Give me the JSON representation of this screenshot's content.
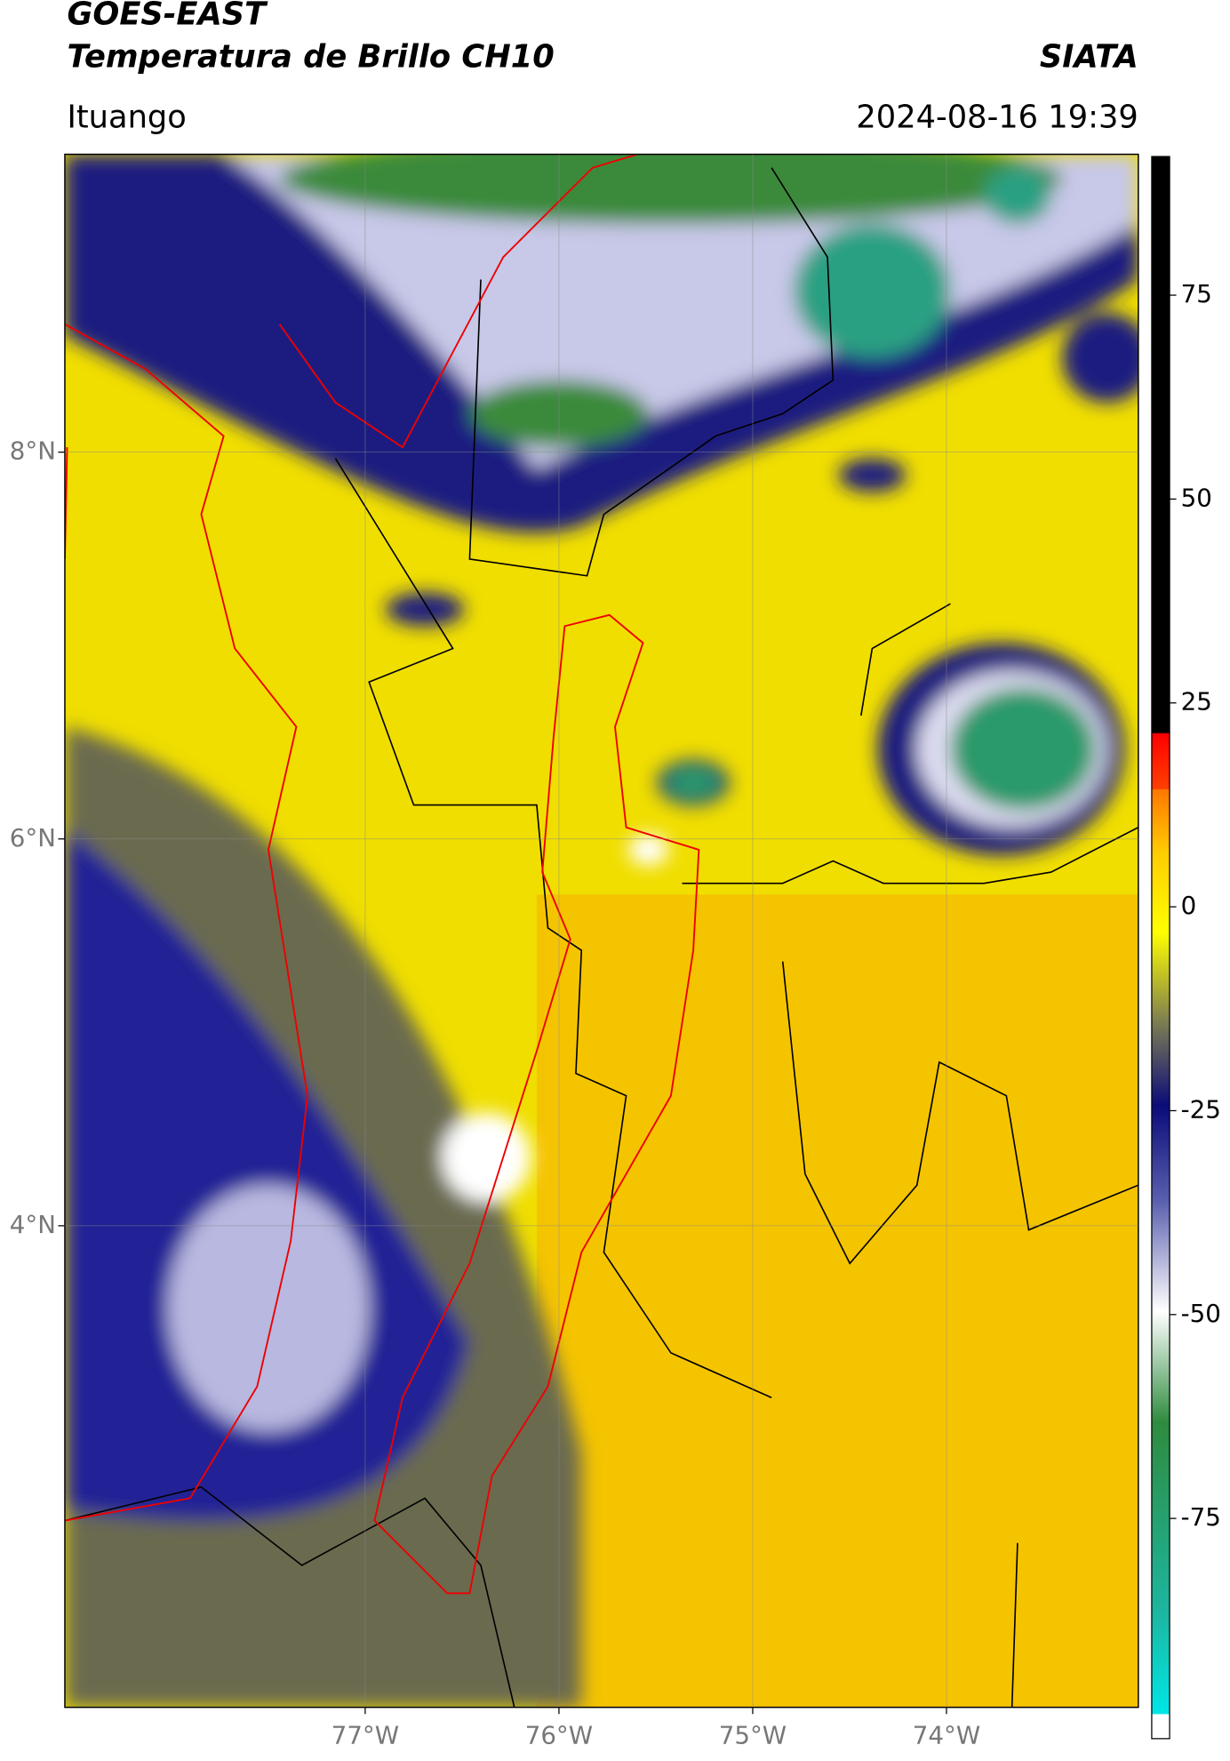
{
  "header": {
    "title": "GOES-EAST",
    "subtitle": "Temperatura de Brillo CH10",
    "brand": "SIATA",
    "location": "Ituango",
    "datetime": "2024-08-16 19:39"
  },
  "map": {
    "xlim": [
      -78.55,
      -73.01
    ],
    "ylim": [
      1.51,
      9.54
    ],
    "xticks": [
      {
        "value": -77,
        "label": "77°W"
      },
      {
        "value": -76,
        "label": "76°W"
      },
      {
        "value": -75,
        "label": "75°W"
      },
      {
        "value": -74,
        "label": "74°W"
      }
    ],
    "yticks": [
      {
        "value": 8,
        "label": "8°N"
      },
      {
        "value": 6,
        "label": "6°N"
      },
      {
        "value": 4,
        "label": "4°N"
      }
    ],
    "grid": true
  },
  "colorbar": {
    "lim": [
      -102,
      92
    ],
    "ticks": [
      75,
      50,
      25,
      0,
      -25,
      -50,
      -75
    ]
  }
}
